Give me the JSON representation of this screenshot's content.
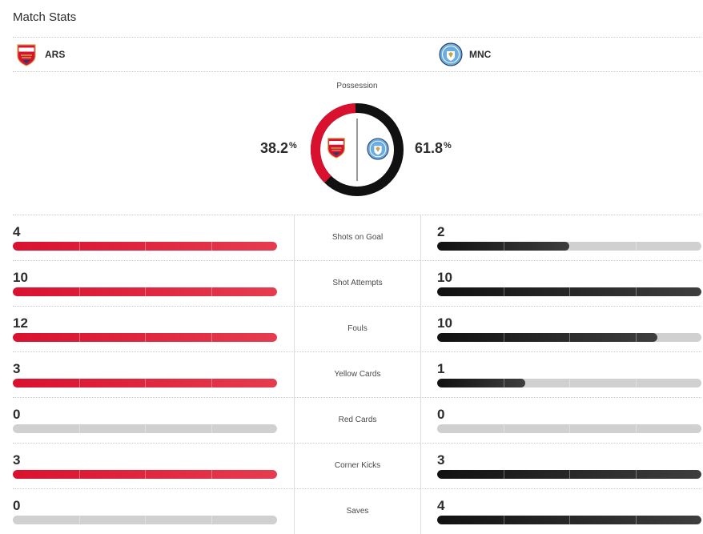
{
  "title": "Match Stats",
  "home": {
    "abbr": "ARS",
    "crest_text": "Arsenal",
    "color": "#d9112f",
    "possession": 38.2
  },
  "away": {
    "abbr": "MNC",
    "crest_text": "MANCHESTER CITY",
    "color": "#111111",
    "crest_color": "#6caddf",
    "possession": 61.8
  },
  "possession": {
    "label": "Possession",
    "home_value": "38.2",
    "away_value": "61.8",
    "unit": "%"
  },
  "stats": [
    {
      "label": "Shots on Goal",
      "home": "4",
      "away": "2"
    },
    {
      "label": "Shot Attempts",
      "home": "10",
      "away": "10"
    },
    {
      "label": "Fouls",
      "home": "12",
      "away": "10"
    },
    {
      "label": "Yellow Cards",
      "home": "3",
      "away": "1"
    },
    {
      "label": "Red Cards",
      "home": "0",
      "away": "0"
    },
    {
      "label": "Corner Kicks",
      "home": "3",
      "away": "3"
    },
    {
      "label": "Saves",
      "home": "0",
      "away": "4"
    }
  ]
}
